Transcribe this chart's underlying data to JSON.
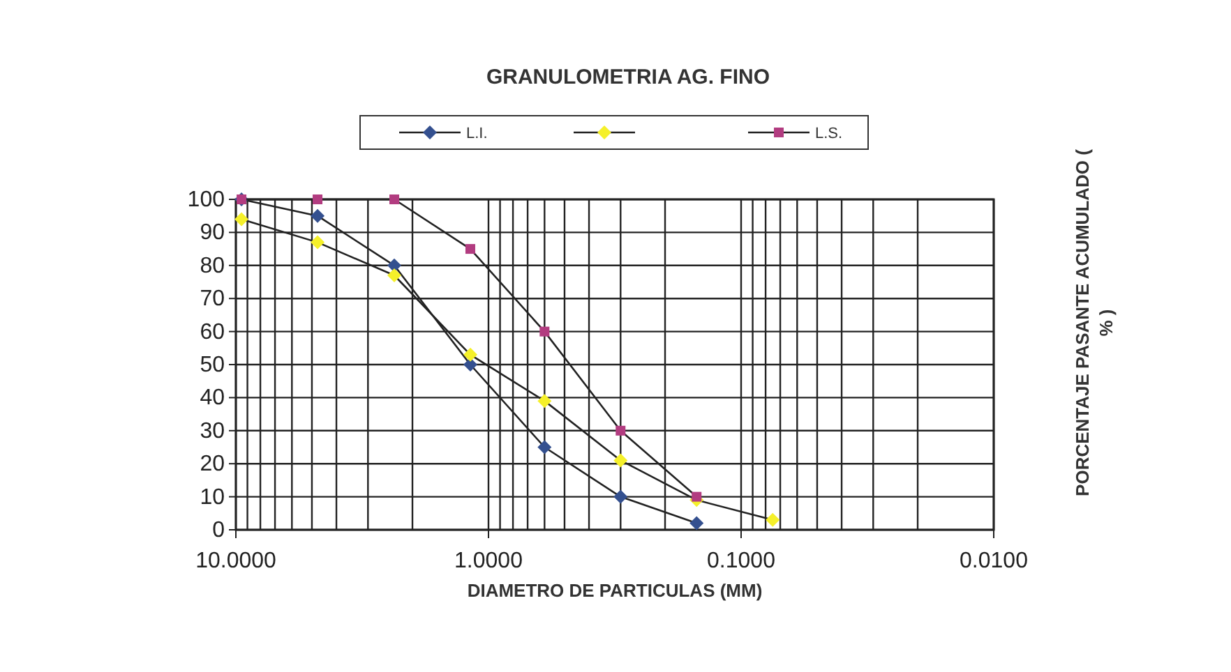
{
  "chart_data": {
    "type": "line",
    "title": "GRANULOMETRIA  AG. FINO",
    "xlabel": "DIAMETRO  DE  PARTICULAS  (MM)",
    "ylabel": "PORCENTAJE  PASANTE  ACUMULADO  ( % )",
    "log": "x",
    "grid": true,
    "legend": "top",
    "xlim": [
      10,
      0.01
    ],
    "xticks": [
      {
        "value": 10,
        "label": "10.0000"
      },
      {
        "value": 9,
        "label": null
      },
      {
        "value": 8,
        "label": null
      },
      {
        "value": 7,
        "label": null
      },
      {
        "value": 6,
        "label": null
      },
      {
        "value": 5,
        "label": null
      },
      {
        "value": 4,
        "label": null
      },
      {
        "value": 3,
        "label": null
      },
      {
        "value": 2,
        "label": null
      },
      {
        "value": 1,
        "label": "1.0000"
      },
      {
        "value": 0.9,
        "label": null
      },
      {
        "value": 0.8,
        "label": null
      },
      {
        "value": 0.7,
        "label": null
      },
      {
        "value": 0.6,
        "label": null
      },
      {
        "value": 0.5,
        "label": null
      },
      {
        "value": 0.4,
        "label": null
      },
      {
        "value": 0.3,
        "label": null
      },
      {
        "value": 0.2,
        "label": null
      },
      {
        "value": 0.1,
        "label": "0.1000"
      },
      {
        "value": 0.09,
        "label": null
      },
      {
        "value": 0.08,
        "label": null
      },
      {
        "value": 0.07,
        "label": null
      },
      {
        "value": 0.06,
        "label": null
      },
      {
        "value": 0.05,
        "label": null
      },
      {
        "value": 0.04,
        "label": null
      },
      {
        "value": 0.03,
        "label": null
      },
      {
        "value": 0.02,
        "label": null
      },
      {
        "value": 0.01,
        "label": "0.0100"
      }
    ],
    "ylim": [
      0,
      100
    ],
    "yticks": [
      0,
      10,
      20,
      30,
      40,
      50,
      60,
      70,
      80,
      90,
      100
    ],
    "series": [
      {
        "name": "L.I.",
        "color": "#34508f",
        "marker": "diamond",
        "x": [
          9.5,
          4.75,
          2.36,
          1.18,
          0.6,
          0.3,
          0.15
        ],
        "values": [
          100,
          95,
          80,
          50,
          25,
          10,
          2
        ]
      },
      {
        "color": "#f5f02a",
        "marker": "diamond",
        "x": [
          9.5,
          4.75,
          2.36,
          1.18,
          0.6,
          0.3,
          0.15,
          0.075
        ],
        "values": [
          94,
          87,
          77,
          53,
          39,
          21,
          9,
          3
        ]
      },
      {
        "name": "L.S.",
        "color": "#b23c80",
        "marker": "square",
        "x": [
          9.5,
          4.75,
          2.36,
          1.18,
          0.6,
          0.3,
          0.15
        ],
        "values": [
          100,
          100,
          100,
          85,
          60,
          30,
          10
        ]
      }
    ]
  }
}
